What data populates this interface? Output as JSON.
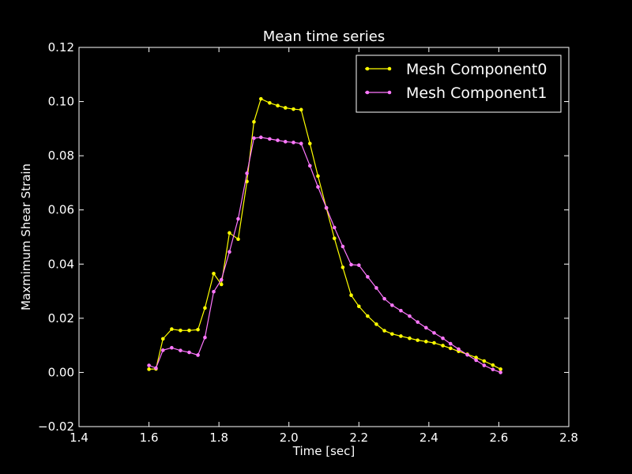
{
  "chart_data": {
    "type": "line",
    "title": "Mean time series",
    "xlabel": "Time [sec]",
    "ylabel": "Maxmimum Shear Strain",
    "xlim": [
      1.4,
      2.8
    ],
    "ylim": [
      -0.02,
      0.12
    ],
    "xticks": [
      1.4,
      1.6,
      1.8,
      2.0,
      2.2,
      2.4,
      2.6,
      2.8
    ],
    "xtick_labels": [
      "1.4",
      "1.6",
      "1.8",
      "2.0",
      "2.2",
      "2.4",
      "2.6",
      "2.8"
    ],
    "yticks": [
      -0.02,
      0.0,
      0.02,
      0.04,
      0.06,
      0.08,
      0.1,
      0.12
    ],
    "ytick_labels": [
      "−0.02",
      "0.00",
      "0.02",
      "0.04",
      "0.06",
      "0.08",
      "0.10",
      "0.12"
    ],
    "grid": false,
    "legend_position": "top-right",
    "background_color": "#000000",
    "foreground_color": "#ffffff",
    "series": [
      {
        "name": "Mesh Component0",
        "color": "#ffff00",
        "x": [
          1.6,
          1.62,
          1.64,
          1.665,
          1.69,
          1.715,
          1.74,
          1.76,
          1.785,
          1.807,
          1.83,
          1.855,
          1.88,
          1.9,
          1.92,
          1.945,
          1.968,
          1.99,
          2.013,
          2.035,
          2.06,
          2.083,
          2.107,
          2.13,
          2.154,
          2.178,
          2.2,
          2.225,
          2.25,
          2.273,
          2.295,
          2.32,
          2.345,
          2.368,
          2.392,
          2.415,
          2.44,
          2.462,
          2.485,
          2.51,
          2.535,
          2.558,
          2.583,
          2.605
        ],
        "y": [
          0.0012,
          0.0013,
          0.0124,
          0.016,
          0.0155,
          0.0155,
          0.0158,
          0.0238,
          0.0365,
          0.0325,
          0.0515,
          0.0492,
          0.0705,
          0.0925,
          0.101,
          0.0995,
          0.0985,
          0.0977,
          0.0972,
          0.097,
          0.0845,
          0.0725,
          0.0607,
          0.0495,
          0.0388,
          0.0285,
          0.0244,
          0.0208,
          0.0178,
          0.0154,
          0.0142,
          0.0134,
          0.0126,
          0.0119,
          0.0114,
          0.0109,
          0.0099,
          0.0089,
          0.0078,
          0.0067,
          0.0055,
          0.0042,
          0.0027,
          0.0012
        ]
      },
      {
        "name": "Mesh Component1",
        "color": "#ff77ff",
        "x": [
          1.6,
          1.62,
          1.64,
          1.665,
          1.69,
          1.715,
          1.74,
          1.76,
          1.785,
          1.807,
          1.83,
          1.855,
          1.88,
          1.9,
          1.92,
          1.945,
          1.968,
          1.99,
          2.013,
          2.035,
          2.06,
          2.083,
          2.107,
          2.13,
          2.154,
          2.178,
          2.2,
          2.225,
          2.25,
          2.273,
          2.295,
          2.32,
          2.345,
          2.368,
          2.392,
          2.415,
          2.44,
          2.462,
          2.485,
          2.51,
          2.535,
          2.558,
          2.583,
          2.605
        ],
        "y": [
          0.0026,
          0.0016,
          0.0082,
          0.0091,
          0.0081,
          0.0074,
          0.0064,
          0.0129,
          0.0298,
          0.0342,
          0.0445,
          0.0567,
          0.0735,
          0.0865,
          0.0868,
          0.0862,
          0.0857,
          0.0852,
          0.0849,
          0.0845,
          0.0763,
          0.0685,
          0.0608,
          0.0535,
          0.0465,
          0.0398,
          0.0396,
          0.0353,
          0.0312,
          0.0272,
          0.0248,
          0.0228,
          0.0208,
          0.0186,
          0.0165,
          0.0146,
          0.0126,
          0.0106,
          0.0086,
          0.0065,
          0.0045,
          0.0026,
          0.0011,
          0.0
        ]
      }
    ]
  }
}
